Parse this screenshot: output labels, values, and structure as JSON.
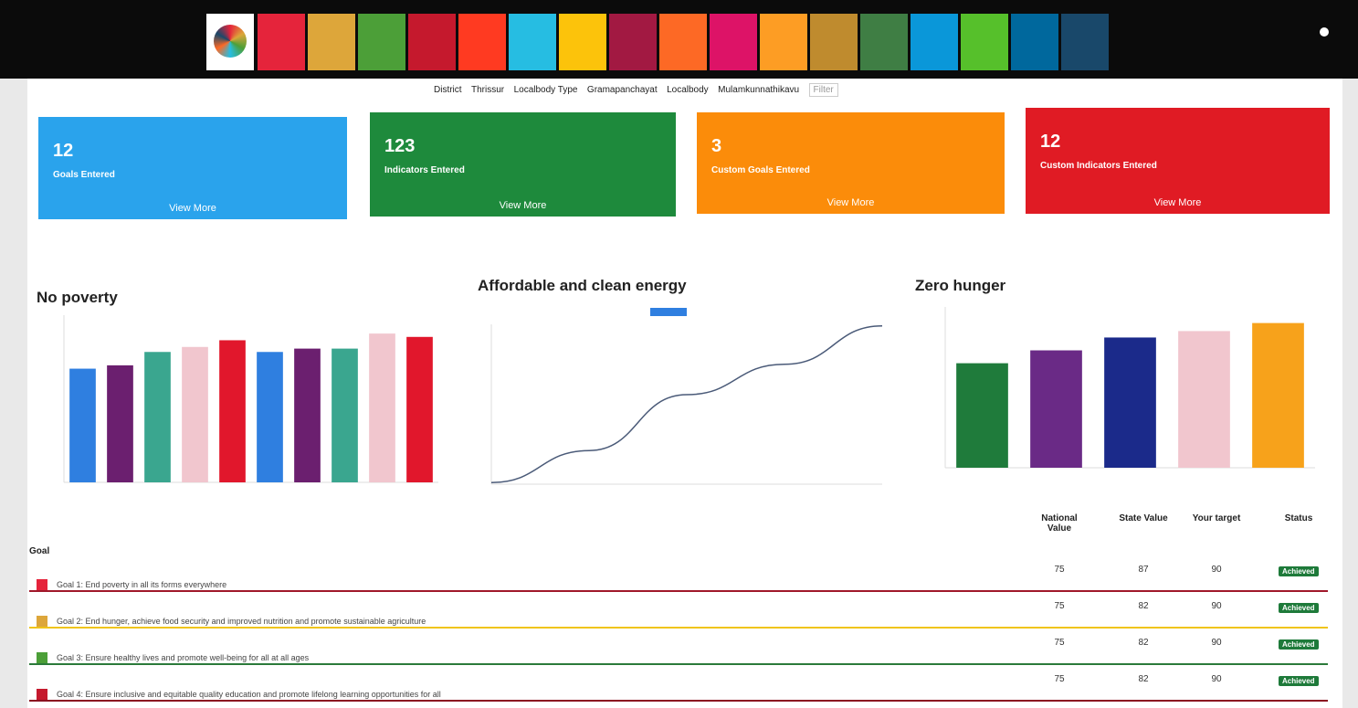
{
  "filters": {
    "items": [
      "District",
      "Thrissur",
      "Localbody Type",
      "Gramapanchayat",
      "Localbody",
      "Mulamkunnathikavu"
    ],
    "button": "Filter"
  },
  "cards": [
    {
      "value": "12",
      "label": "Goals Entered",
      "link": "View More"
    },
    {
      "value": "123",
      "label": "Indicators Entered",
      "link": "View More"
    },
    {
      "value": "3",
      "label": "Custom Goals Entered",
      "link": "View More"
    },
    {
      "value": "12",
      "label": "Custom Indicators Entered",
      "link": "View More"
    }
  ],
  "chart_data": [
    {
      "type": "bar",
      "title": "No poverty",
      "categories": [
        null,
        null,
        null,
        null,
        null,
        null,
        null,
        null,
        null,
        null
      ],
      "values": [
        68,
        70,
        78,
        81,
        85,
        78,
        80,
        80,
        89,
        87
      ],
      "colors": [
        "#2f7fe0",
        "#6b1f6f",
        "#3aa68f",
        "#f1c6ce",
        "#e1172c",
        "#2f7fe0",
        "#6b1f6f",
        "#3aa68f",
        "#f1c6ce",
        "#e1172c"
      ],
      "ylim": [
        0,
        100
      ]
    },
    {
      "type": "line",
      "title": "Affordable and clean energy",
      "categories": [
        null,
        null,
        null,
        null,
        null
      ],
      "values": [
        1,
        21,
        56,
        75,
        99
      ],
      "color": "#4a5a78",
      "legend_color": "#2f7fe0",
      "ylim": [
        0,
        100
      ]
    },
    {
      "type": "bar",
      "title": "Zero hunger",
      "categories": [
        null,
        null,
        null,
        null,
        null
      ],
      "values": [
        65,
        73,
        81,
        85,
        90
      ],
      "colors": [
        "#1f7b3b",
        "#6a2a86",
        "#1b2a8a",
        "#f1c6ce",
        "#f7a21b"
      ],
      "ylim": [
        0,
        100
      ]
    }
  ],
  "table": {
    "header": [
      "Goal",
      "National Value",
      "State Value",
      "Your target",
      "Status"
    ],
    "rows": [
      [
        "Goal 1: End poverty in all its forms everywhere",
        "75",
        "87",
        "90",
        "Achieved"
      ],
      [
        "Goal 2: End hunger, achieve food security and improved nutrition and promote sustainable agriculture",
        "75",
        "82",
        "90",
        "Achieved"
      ],
      [
        "Goal 3: Ensure healthy lives and promote well-being for all at all ages",
        "75",
        "82",
        "90",
        "Achieved"
      ],
      [
        "Goal 4: Ensure inclusive and equitable quality education and promote lifelong learning opportunities for all",
        "75",
        "82",
        "90",
        "Achieved"
      ]
    ]
  }
}
